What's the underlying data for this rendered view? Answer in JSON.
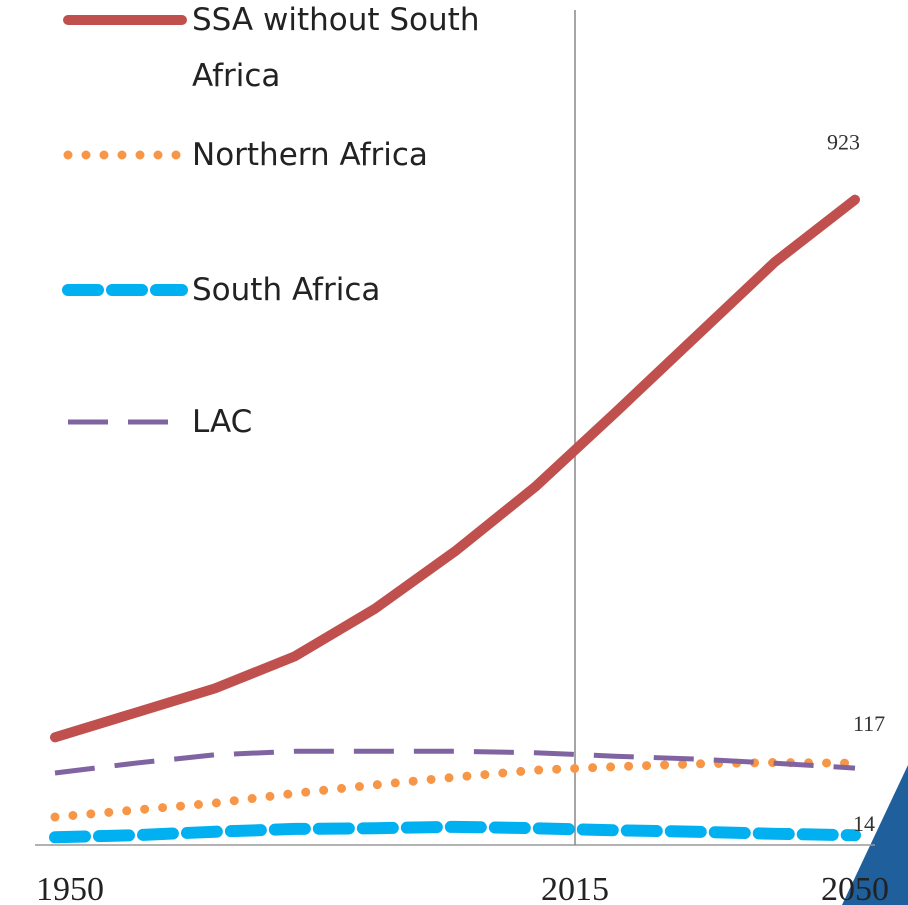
{
  "chart_data": {
    "type": "line",
    "x": [
      1950,
      1960,
      1970,
      1980,
      1990,
      2000,
      2010,
      2020,
      2030,
      2040,
      2050
    ],
    "xlim": [
      1950,
      2050
    ],
    "xticks": [
      1950,
      2015,
      2050
    ],
    "ylim": [
      0,
      1200
    ],
    "vline": 2015,
    "series": [
      {
        "name": "SSA without South Africa",
        "color": "#c0504d",
        "style": "solid",
        "values": [
          154,
          189,
          224,
          270,
          338,
          420,
          512,
          618,
          726,
          834,
          923
        ],
        "value_labels": [
          null,
          null,
          null,
          null,
          null,
          null,
          null,
          null,
          null,
          null,
          "923"
        ]
      },
      {
        "name": "Northern Africa",
        "color": "#f79646",
        "style": "dotted",
        "values": [
          40,
          50,
          60,
          74,
          86,
          97,
          107,
          112,
          116,
          118,
          117
        ],
        "value_labels": [
          null,
          null,
          null,
          null,
          null,
          null,
          null,
          null,
          null,
          null,
          "117"
        ]
      },
      {
        "name": "South Africa",
        "color": "#00b0f0",
        "style": "dashed",
        "values": [
          11,
          14,
          19,
          23,
          24,
          26,
          24,
          21,
          19,
          16,
          14
        ],
        "value_labels": [
          null,
          null,
          null,
          null,
          null,
          null,
          null,
          null,
          null,
          null,
          "14"
        ]
      },
      {
        "name": "LAC",
        "color": "#8064a2",
        "style": "longdash",
        "values": [
          103,
          117,
          129,
          134,
          134,
          134,
          132,
          127,
          123,
          117,
          110
        ]
      }
    ]
  }
}
